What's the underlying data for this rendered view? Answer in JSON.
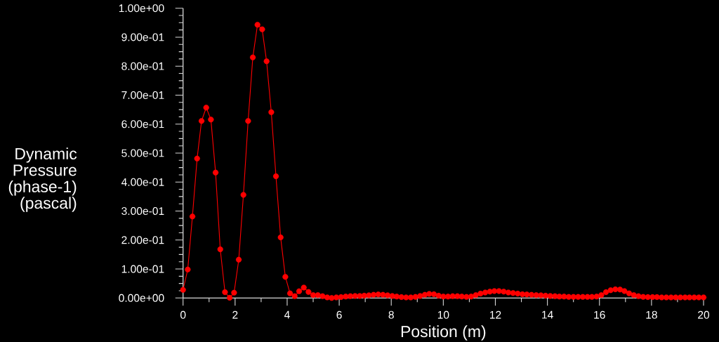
{
  "chart_data": {
    "type": "line",
    "xlabel": "Position (m)",
    "ylabel": "Dynamic Pressure (phase-1) (pascal)",
    "x": [
      0,
      0.18,
      0.36,
      0.54,
      0.71,
      0.89,
      1.07,
      1.25,
      1.43,
      1.61,
      1.79,
      1.96,
      2.14,
      2.32,
      2.5,
      2.68,
      2.86,
      3.04,
      3.21,
      3.39,
      3.57,
      3.75,
      3.93,
      4.11,
      4.29,
      4.46,
      4.64,
      4.82,
      5.0,
      5.18,
      5.36,
      5.54,
      5.71,
      5.89,
      6.07,
      6.25,
      6.43,
      6.61,
      6.79,
      6.96,
      7.14,
      7.32,
      7.5,
      7.68,
      7.86,
      8.04,
      8.21,
      8.39,
      8.57,
      8.75,
      8.93,
      9.11,
      9.29,
      9.46,
      9.64,
      9.82,
      10.0,
      10.18,
      10.36,
      10.54,
      10.71,
      10.89,
      11.07,
      11.25,
      11.43,
      11.61,
      11.79,
      11.96,
      12.14,
      12.32,
      12.5,
      12.68,
      12.86,
      13.04,
      13.21,
      13.39,
      13.57,
      13.75,
      13.93,
      14.11,
      14.29,
      14.46,
      14.64,
      14.82,
      15.0,
      15.18,
      15.36,
      15.54,
      15.71,
      15.89,
      16.07,
      16.25,
      16.43,
      16.61,
      16.79,
      16.96,
      17.14,
      17.32,
      17.5,
      17.68,
      17.86,
      18.04,
      18.21,
      18.39,
      18.57,
      18.75,
      18.93,
      19.11,
      19.29,
      19.46,
      19.64,
      19.82,
      20.0
    ],
    "series": [
      {
        "color": "#ff0000",
        "values": [
          0.028,
          0.098,
          0.281,
          0.481,
          0.611,
          0.657,
          0.616,
          0.433,
          0.168,
          0.02,
          0.001,
          0.018,
          0.132,
          0.356,
          0.611,
          0.83,
          0.943,
          0.927,
          0.817,
          0.641,
          0.42,
          0.209,
          0.073,
          0.016,
          0.006,
          0.023,
          0.036,
          0.021,
          0.01,
          0.01,
          0.006,
          0.002,
          0.0,
          0.002,
          0.003,
          0.005,
          0.006,
          0.007,
          0.007,
          0.008,
          0.009,
          0.011,
          0.012,
          0.011,
          0.009,
          0.007,
          0.005,
          0.003,
          0.002,
          0.002,
          0.004,
          0.007,
          0.011,
          0.014,
          0.013,
          0.008,
          0.005,
          0.005,
          0.006,
          0.006,
          0.005,
          0.004,
          0.005,
          0.01,
          0.015,
          0.019,
          0.022,
          0.024,
          0.024,
          0.022,
          0.019,
          0.017,
          0.015,
          0.013,
          0.012,
          0.011,
          0.01,
          0.009,
          0.008,
          0.007,
          0.006,
          0.005,
          0.005,
          0.004,
          0.004,
          0.004,
          0.004,
          0.004,
          0.004,
          0.005,
          0.01,
          0.02,
          0.027,
          0.03,
          0.029,
          0.024,
          0.016,
          0.01,
          0.006,
          0.004,
          0.003,
          0.003,
          0.003,
          0.002,
          0.002,
          0.002,
          0.002,
          0.002,
          0.002,
          0.002,
          0.002,
          0.002,
          0.002
        ]
      }
    ],
    "xlim": [
      0,
      20
    ],
    "ylim": [
      0,
      1
    ],
    "xticks": [
      0,
      {
        "value": 1,
        "label": null
      },
      2,
      {
        "value": 3,
        "label": null
      },
      4,
      {
        "value": 5,
        "label": null
      },
      6,
      {
        "value": 7,
        "label": null
      },
      8,
      {
        "value": 9,
        "label": null
      },
      10,
      {
        "value": 11,
        "label": null
      },
      12,
      {
        "value": 13,
        "label": null
      },
      14,
      {
        "value": 15,
        "label": null
      },
      16,
      {
        "value": 17,
        "label": null
      },
      18,
      {
        "value": 19,
        "label": null
      },
      20
    ],
    "yticks": [
      {
        "value": 0,
        "label": "0.00e+00"
      },
      {
        "value": 0.025,
        "label": null
      },
      {
        "value": 0.05,
        "label": null
      },
      {
        "value": 0.075,
        "label": null
      },
      {
        "value": 0.1,
        "label": "1.00e-01"
      },
      {
        "value": 0.125,
        "label": null
      },
      {
        "value": 0.15,
        "label": null
      },
      {
        "value": 0.175,
        "label": null
      },
      {
        "value": 0.2,
        "label": "2.00e-01"
      },
      {
        "value": 0.225,
        "label": null
      },
      {
        "value": 0.25,
        "label": null
      },
      {
        "value": 0.275,
        "label": null
      },
      {
        "value": 0.3,
        "label": "3.00e-01"
      },
      {
        "value": 0.325,
        "label": null
      },
      {
        "value": 0.35,
        "label": null
      },
      {
        "value": 0.375,
        "label": null
      },
      {
        "value": 0.4,
        "label": "4.00e-01"
      },
      {
        "value": 0.425,
        "label": null
      },
      {
        "value": 0.45,
        "label": null
      },
      {
        "value": 0.475,
        "label": null
      },
      {
        "value": 0.5,
        "label": "5.00e-01"
      },
      {
        "value": 0.525,
        "label": null
      },
      {
        "value": 0.55,
        "label": null
      },
      {
        "value": 0.575,
        "label": null
      },
      {
        "value": 0.6,
        "label": "6.00e-01"
      },
      {
        "value": 0.625,
        "label": null
      },
      {
        "value": 0.65,
        "label": null
      },
      {
        "value": 0.675,
        "label": null
      },
      {
        "value": 0.7,
        "label": "7.00e-01"
      },
      {
        "value": 0.725,
        "label": null
      },
      {
        "value": 0.75,
        "label": null
      },
      {
        "value": 0.775,
        "label": null
      },
      {
        "value": 0.8,
        "label": "8.00e-01"
      },
      {
        "value": 0.825,
        "label": null
      },
      {
        "value": 0.85,
        "label": null
      },
      {
        "value": 0.875,
        "label": null
      },
      {
        "value": 0.9,
        "label": "9.00e-01"
      },
      {
        "value": 0.925,
        "label": null
      },
      {
        "value": 0.95,
        "label": null
      },
      {
        "value": 0.975,
        "label": null
      },
      {
        "value": 1,
        "label": "1.00e+00"
      }
    ],
    "marker": "circle",
    "line_style": "solid"
  }
}
